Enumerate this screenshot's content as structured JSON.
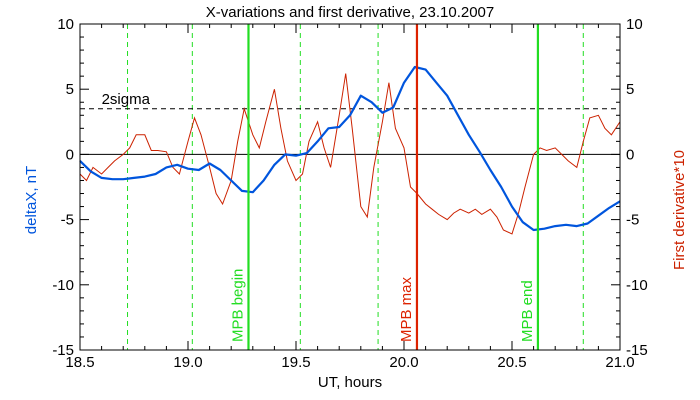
{
  "chart_data": {
    "type": "line",
    "title": "X-variations and first derivative, 23.10.2007",
    "xlabel": "UT, hours",
    "ylabel_left": "deltaX, nT",
    "ylabel_right": "First derivative*10",
    "xlim": [
      18.5,
      21.0
    ],
    "ylim_left": [
      -15,
      10
    ],
    "ylim_right": [
      -15,
      10
    ],
    "x_ticks": [
      "18.5",
      "19.0",
      "19.5",
      "20.0",
      "20.5",
      "21.0"
    ],
    "x_tick_values": [
      18.5,
      19.0,
      19.5,
      20.0,
      20.5,
      21.0
    ],
    "y_ticks_left": [
      "-15",
      "-10",
      "-5",
      "0",
      "5",
      "10"
    ],
    "y_ticks_right": [
      "-15",
      "-10",
      "-5",
      "0",
      "5",
      "10"
    ],
    "y_tick_values": [
      -15,
      -10,
      -5,
      0,
      5,
      10
    ],
    "colors": {
      "deltaX": "#0055dd",
      "derivative": "#cc2200",
      "mpb": "#22dd22",
      "max": "#dd2200",
      "axes": "#000000"
    },
    "sigma": {
      "label": "2sigma",
      "value": 3.5
    },
    "zero_line": 0,
    "dashed_green_x": [
      18.72,
      19.02,
      19.52,
      19.88,
      20.83
    ],
    "markers": [
      {
        "x": 19.28,
        "label": "MPB begin",
        "color": "#22dd22"
      },
      {
        "x": 20.06,
        "label": "MPB max",
        "color": "#dd2200"
      },
      {
        "x": 20.62,
        "label": "MPB end",
        "color": "#22dd22"
      }
    ],
    "series": [
      {
        "name": "deltaX",
        "axis": "left",
        "x": [
          18.5,
          18.55,
          18.6,
          18.65,
          18.7,
          18.75,
          18.8,
          18.85,
          18.9,
          18.95,
          19.0,
          19.05,
          19.1,
          19.15,
          19.2,
          19.25,
          19.3,
          19.35,
          19.4,
          19.45,
          19.5,
          19.55,
          19.6,
          19.65,
          19.7,
          19.75,
          19.8,
          19.85,
          19.9,
          19.95,
          20.0,
          20.05,
          20.1,
          20.15,
          20.2,
          20.25,
          20.3,
          20.35,
          20.4,
          20.45,
          20.5,
          20.55,
          20.6,
          20.65,
          20.7,
          20.75,
          20.8,
          20.85,
          20.9,
          20.95,
          21.0
        ],
        "y": [
          -0.5,
          -1.3,
          -1.8,
          -1.9,
          -1.9,
          -1.8,
          -1.7,
          -1.5,
          -1.0,
          -0.8,
          -1.1,
          -1.2,
          -0.7,
          -1.2,
          -2.0,
          -2.8,
          -2.9,
          -2.0,
          -0.8,
          0.0,
          -0.1,
          0.1,
          1.0,
          2.0,
          2.1,
          3.0,
          4.5,
          4.0,
          3.2,
          3.6,
          5.5,
          6.7,
          6.5,
          5.5,
          4.5,
          3.0,
          1.5,
          0.2,
          -1.2,
          -2.5,
          -4.0,
          -5.2,
          -5.8,
          -5.7,
          -5.5,
          -5.4,
          -5.5,
          -5.3,
          -4.7,
          -4.1,
          -3.6
        ]
      },
      {
        "name": "derivative",
        "axis": "right",
        "x": [
          18.5,
          18.53,
          18.56,
          18.6,
          18.63,
          18.66,
          18.7,
          18.73,
          18.76,
          18.8,
          18.83,
          18.86,
          18.9,
          18.93,
          18.96,
          19.0,
          19.03,
          19.06,
          19.1,
          19.13,
          19.16,
          19.2,
          19.23,
          19.26,
          19.3,
          19.33,
          19.36,
          19.4,
          19.43,
          19.46,
          19.5,
          19.53,
          19.56,
          19.6,
          19.63,
          19.66,
          19.7,
          19.73,
          19.76,
          19.8,
          19.83,
          19.86,
          19.9,
          19.93,
          19.96,
          20.0,
          20.03,
          20.06,
          20.1,
          20.13,
          20.16,
          20.2,
          20.23,
          20.26,
          20.3,
          20.33,
          20.36,
          20.4,
          20.43,
          20.46,
          20.5,
          20.53,
          20.56,
          20.6,
          20.63,
          20.66,
          20.7,
          20.73,
          20.76,
          20.8,
          20.83,
          20.86,
          20.9,
          20.93,
          20.96,
          21.0
        ],
        "y": [
          -1.5,
          -2.0,
          -1.0,
          -1.5,
          -1.0,
          -0.5,
          0.0,
          0.5,
          1.5,
          1.5,
          0.3,
          0.3,
          0.2,
          -1.0,
          -1.5,
          1.0,
          2.8,
          1.5,
          -1.0,
          -3.0,
          -3.8,
          -2.0,
          1.0,
          3.5,
          1.5,
          0.5,
          2.5,
          5.0,
          2.0,
          -0.5,
          -2.0,
          -1.5,
          1.0,
          2.5,
          0.5,
          -1.0,
          3.0,
          6.2,
          2.0,
          -4.0,
          -4.8,
          -1.0,
          2.5,
          5.5,
          2.0,
          0.5,
          -2.5,
          -3.0,
          -3.8,
          -4.2,
          -4.6,
          -5.0,
          -4.5,
          -4.2,
          -4.5,
          -4.2,
          -4.6,
          -4.2,
          -4.8,
          -5.8,
          -6.1,
          -4.5,
          -2.5,
          0.0,
          0.5,
          0.3,
          0.5,
          0.0,
          -0.5,
          -1.0,
          1.0,
          2.8,
          3.0,
          2.0,
          1.5,
          2.5
        ]
      }
    ]
  }
}
